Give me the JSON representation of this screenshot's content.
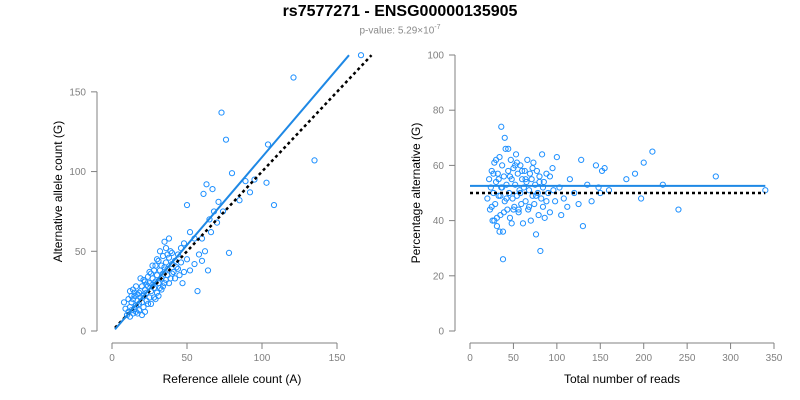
{
  "header": {
    "title": "rs7577271 - ENSG00000135905",
    "subtitle_prefix": "p-value: 5.29×10",
    "subtitle_exponent": "-7"
  },
  "colors": {
    "points": "#1e90ff",
    "fit_line": "#1e88e5",
    "reference_line": "#000000",
    "axis": "#808080"
  },
  "chart_data": [
    {
      "type": "scatter",
      "title": "",
      "xlabel": "Reference allele count (A)",
      "ylabel": "Alternative allele count (G)",
      "xlim": [
        0,
        160
      ],
      "ylim": [
        0,
        175
      ],
      "xticks": [
        0,
        50,
        100,
        150
      ],
      "yticks": [
        0,
        50,
        100,
        150
      ],
      "grid": false,
      "fit_line": [
        [
          2,
          1
        ],
        [
          158,
          173
        ]
      ],
      "reference_line": [
        [
          2,
          2
        ],
        [
          173,
          173
        ]
      ],
      "points": [
        [
          10,
          10
        ],
        [
          11,
          12
        ],
        [
          12,
          9
        ],
        [
          12,
          15
        ],
        [
          13,
          18
        ],
        [
          13,
          13
        ],
        [
          14,
          20
        ],
        [
          14,
          11
        ],
        [
          15,
          14
        ],
        [
          15,
          22
        ],
        [
          16,
          16
        ],
        [
          16,
          12
        ],
        [
          17,
          19
        ],
        [
          17,
          23
        ],
        [
          18,
          17
        ],
        [
          18,
          13
        ],
        [
          19,
          21
        ],
        [
          19,
          25
        ],
        [
          20,
          18
        ],
        [
          20,
          28
        ],
        [
          21,
          15
        ],
        [
          21,
          22
        ],
        [
          22,
          26
        ],
        [
          22,
          31
        ],
        [
          23,
          19
        ],
        [
          23,
          24
        ],
        [
          24,
          28
        ],
        [
          24,
          34
        ],
        [
          25,
          21
        ],
        [
          25,
          30
        ],
        [
          26,
          25
        ],
        [
          26,
          36
        ],
        [
          27,
          33
        ],
        [
          27,
          29
        ],
        [
          28,
          27
        ],
        [
          28,
          38
        ],
        [
          29,
          31
        ],
        [
          29,
          41
        ],
        [
          30,
          24
        ],
        [
          30,
          35
        ],
        [
          31,
          30
        ],
        [
          31,
          44
        ],
        [
          32,
          38
        ],
        [
          32,
          27
        ],
        [
          33,
          41
        ],
        [
          33,
          33
        ],
        [
          34,
          36
        ],
        [
          34,
          47
        ],
        [
          35,
          30
        ],
        [
          35,
          40
        ],
        [
          36,
          43
        ],
        [
          36,
          52
        ],
        [
          37,
          35
        ],
        [
          37,
          39
        ],
        [
          38,
          46
        ],
        [
          38,
          58
        ],
        [
          39,
          33
        ],
        [
          40,
          42
        ],
        [
          40,
          49
        ],
        [
          41,
          37
        ],
        [
          42,
          44
        ],
        [
          43,
          40
        ],
        [
          44,
          48
        ],
        [
          45,
          35
        ],
        [
          46,
          52
        ],
        [
          47,
          30
        ],
        [
          48,
          55
        ],
        [
          50,
          45
        ],
        [
          52,
          62
        ],
        [
          55,
          42
        ],
        [
          57,
          25
        ],
        [
          60,
          58
        ],
        [
          61,
          86
        ],
        [
          62,
          50
        ],
        [
          63,
          92
        ],
        [
          64,
          38
        ],
        [
          65,
          70
        ],
        [
          66,
          62
        ],
        [
          67,
          89
        ],
        [
          68,
          75
        ],
        [
          70,
          68
        ],
        [
          71,
          81
        ],
        [
          73,
          137
        ],
        [
          74,
          75
        ],
        [
          76,
          120
        ],
        [
          78,
          49
        ],
        [
          80,
          99
        ],
        [
          85,
          82
        ],
        [
          89,
          94
        ],
        [
          92,
          87
        ],
        [
          95,
          95
        ],
        [
          103,
          93
        ],
        [
          104,
          117
        ],
        [
          108,
          79
        ],
        [
          121,
          159
        ],
        [
          135,
          107
        ],
        [
          166,
          173
        ],
        [
          8,
          18
        ],
        [
          9,
          14
        ],
        [
          11,
          20
        ],
        [
          12,
          25
        ],
        [
          13,
          22
        ],
        [
          14,
          26
        ],
        [
          15,
          24
        ],
        [
          16,
          28
        ],
        [
          17,
          11
        ],
        [
          18,
          24
        ],
        [
          19,
          33
        ],
        [
          20,
          10
        ],
        [
          21,
          32
        ],
        [
          22,
          12
        ],
        [
          23,
          29
        ],
        [
          24,
          17
        ],
        [
          25,
          37
        ],
        [
          26,
          17
        ],
        [
          27,
          41
        ],
        [
          28,
          21
        ],
        [
          29,
          20
        ],
        [
          30,
          45
        ],
        [
          31,
          22
        ],
        [
          32,
          50
        ],
        [
          33,
          26
        ],
        [
          34,
          28
        ],
        [
          35,
          56
        ],
        [
          36,
          32
        ],
        [
          37,
          48
        ],
        [
          38,
          30
        ],
        [
          39,
          50
        ],
        [
          40,
          36
        ],
        [
          42,
          33
        ],
        [
          44,
          39
        ],
        [
          46,
          43
        ],
        [
          48,
          37
        ],
        [
          50,
          79
        ],
        [
          52,
          38
        ],
        [
          55,
          58
        ],
        [
          58,
          48
        ],
        [
          60,
          44
        ]
      ]
    },
    {
      "type": "scatter",
      "title": "",
      "xlabel": "Total number of reads",
      "ylabel": "Percentage alternative (G)",
      "xlim": [
        0,
        350
      ],
      "ylim": [
        0,
        100
      ],
      "xticks": [
        0,
        50,
        100,
        150,
        200,
        250,
        300,
        350
      ],
      "yticks": [
        0,
        20,
        40,
        60,
        80,
        100
      ],
      "grid": false,
      "fit_line": [
        [
          0,
          52.6
        ],
        [
          340,
          52.6
        ]
      ],
      "reference_line": [
        [
          0,
          50
        ],
        [
          340,
          50
        ]
      ],
      "points": [
        [
          20,
          48
        ],
        [
          22,
          55
        ],
        [
          23,
          44
        ],
        [
          24,
          52
        ],
        [
          25,
          58
        ],
        [
          26,
          40
        ],
        [
          27,
          50
        ],
        [
          28,
          61
        ],
        [
          29,
          46
        ],
        [
          30,
          54
        ],
        [
          31,
          38
        ],
        [
          32,
          57
        ],
        [
          33,
          49
        ],
        [
          34,
          63
        ],
        [
          35,
          42
        ],
        [
          36,
          52
        ],
        [
          37,
          60
        ],
        [
          38,
          36
        ],
        [
          39,
          56
        ],
        [
          40,
          47
        ],
        [
          41,
          66
        ],
        [
          42,
          53
        ],
        [
          43,
          44
        ],
        [
          44,
          58
        ],
        [
          45,
          50
        ],
        [
          46,
          41
        ],
        [
          47,
          62
        ],
        [
          48,
          55
        ],
        [
          49,
          48
        ],
        [
          50,
          59
        ],
        [
          51,
          45
        ],
        [
          52,
          53
        ],
        [
          53,
          64
        ],
        [
          54,
          49
        ],
        [
          55,
          57
        ],
        [
          56,
          43
        ],
        [
          57,
          51
        ],
        [
          58,
          60
        ],
        [
          59,
          46
        ],
        [
          60,
          55
        ],
        [
          61,
          39
        ],
        [
          62,
          52
        ],
        [
          63,
          58
        ],
        [
          64,
          47
        ],
        [
          65,
          54
        ],
        [
          66,
          62
        ],
        [
          67,
          44
        ],
        [
          68,
          51
        ],
        [
          69,
          57
        ],
        [
          70,
          40
        ],
        [
          71,
          55
        ],
        [
          72,
          49
        ],
        [
          73,
          61
        ],
        [
          74,
          46
        ],
        [
          75,
          53
        ],
        [
          76,
          35
        ],
        [
          77,
          58
        ],
        [
          78,
          50
        ],
        [
          79,
          42
        ],
        [
          80,
          56
        ],
        [
          81,
          29
        ],
        [
          82,
          48
        ],
        [
          83,
          64
        ],
        [
          84,
          45
        ],
        [
          85,
          54
        ],
        [
          86,
          41
        ],
        [
          88,
          57
        ],
        [
          90,
          50
        ],
        [
          92,
          43
        ],
        [
          95,
          59
        ],
        [
          98,
          47
        ],
        [
          100,
          63
        ],
        [
          103,
          52
        ],
        [
          105,
          42
        ],
        [
          108,
          48
        ],
        [
          112,
          45
        ],
        [
          115,
          55
        ],
        [
          120,
          50
        ],
        [
          125,
          46
        ],
        [
          128,
          62
        ],
        [
          130,
          38
        ],
        [
          135,
          53
        ],
        [
          140,
          47
        ],
        [
          145,
          60
        ],
        [
          148,
          52
        ],
        [
          150,
          50
        ],
        [
          152,
          58
        ],
        [
          155,
          59
        ],
        [
          160,
          51
        ],
        [
          180,
          55
        ],
        [
          190,
          57
        ],
        [
          197,
          48
        ],
        [
          200,
          61
        ],
        [
          210,
          65
        ],
        [
          222,
          53
        ],
        [
          240,
          44
        ],
        [
          283,
          56
        ],
        [
          340,
          51
        ],
        [
          36,
          74
        ],
        [
          38,
          26
        ],
        [
          34,
          36
        ],
        [
          30,
          62
        ],
        [
          28,
          40
        ],
        [
          40,
          70
        ],
        [
          44,
          66
        ],
        [
          48,
          39
        ],
        [
          52,
          60
        ],
        [
          56,
          44
        ],
        [
          60,
          58
        ],
        [
          64,
          55
        ],
        [
          68,
          45
        ],
        [
          72,
          59
        ],
        [
          76,
          49
        ],
        [
          80,
          54
        ],
        [
          84,
          52
        ],
        [
          88,
          47
        ],
        [
          92,
          56
        ],
        [
          96,
          51
        ],
        [
          25,
          45
        ],
        [
          27,
          57
        ],
        [
          31,
          41
        ],
        [
          33,
          55
        ],
        [
          35,
          49
        ],
        [
          37,
          52
        ],
        [
          39,
          43
        ],
        [
          42,
          48
        ],
        [
          46,
          56
        ],
        [
          50,
          44
        ],
        [
          54,
          61
        ],
        [
          58,
          50
        ]
      ]
    }
  ]
}
